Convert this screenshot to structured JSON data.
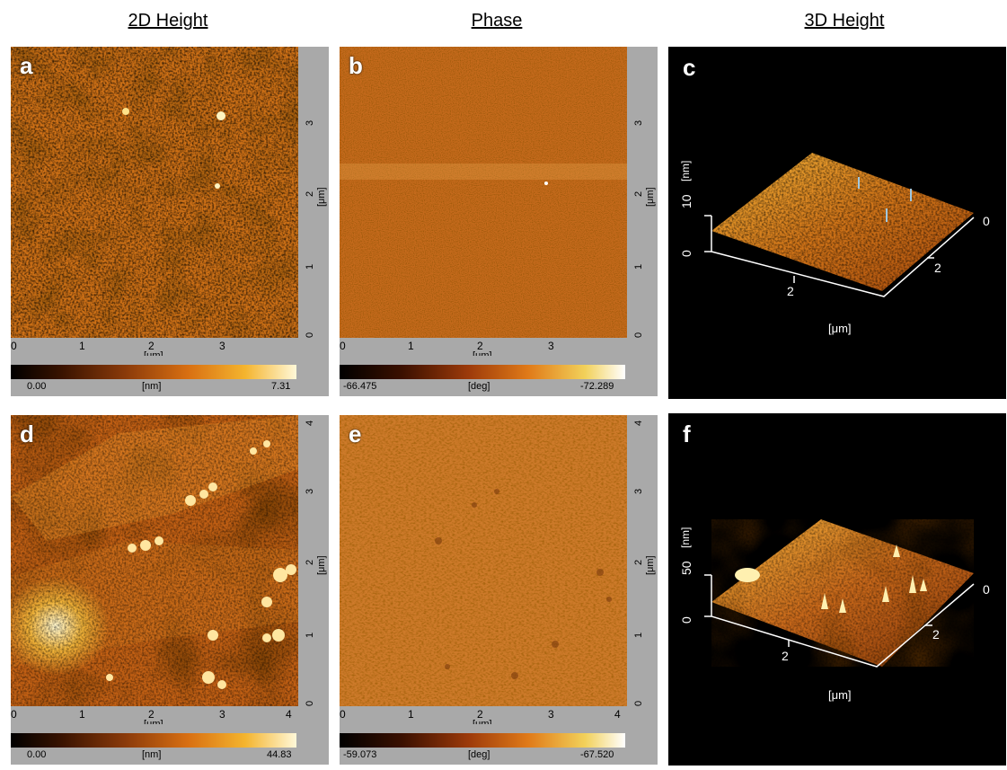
{
  "column_titles": [
    "2D Height",
    "Phase",
    "3D Height"
  ],
  "panels": {
    "a": {
      "label": "a",
      "y_ticks": [
        "0",
        "1",
        "2",
        "3"
      ],
      "x_ticks": [
        "0",
        "1",
        "2",
        "3"
      ],
      "unit": "[μm]",
      "colorbar": {
        "min": "0.00",
        "unit": "[nm]",
        "max": "7.31"
      }
    },
    "b": {
      "label": "b",
      "y_ticks": [
        "0",
        "1",
        "2",
        "3"
      ],
      "x_ticks": [
        "0",
        "1",
        "2",
        "3"
      ],
      "unit": "[μm]",
      "colorbar": {
        "min": "-66.475",
        "unit": "[deg]",
        "max": "-72.289"
      }
    },
    "c": {
      "label": "c",
      "z_label": "[nm]",
      "z_ticks": [
        "0",
        "10"
      ],
      "x_tick": "2",
      "y_ticks": [
        "0",
        "2"
      ],
      "unit": "[μm]"
    },
    "d": {
      "label": "d",
      "y_ticks": [
        "0",
        "1",
        "2",
        "3",
        "4"
      ],
      "x_ticks": [
        "0",
        "1",
        "2",
        "3",
        "4"
      ],
      "unit": "[μm]",
      "colorbar": {
        "min": "0.00",
        "unit": "[nm]",
        "max": "44.83"
      }
    },
    "e": {
      "label": "e",
      "y_ticks": [
        "0",
        "1",
        "2",
        "3",
        "4"
      ],
      "x_ticks": [
        "0",
        "1",
        "2",
        "3",
        "4"
      ],
      "unit": "[μm]",
      "colorbar": {
        "min": "-59.073",
        "unit": "[deg]",
        "max": "-67.520"
      }
    },
    "f": {
      "label": "f",
      "z_label": "[nm]",
      "z_ticks": [
        "0",
        "50"
      ],
      "x_tick": "2",
      "y_ticks": [
        "0",
        "2"
      ],
      "unit": "[μm]"
    }
  },
  "colors": {
    "afm_orange": "#c8600e",
    "afm_bright": "#f6c13a",
    "sidebar_gray": "#a9a9a9"
  }
}
